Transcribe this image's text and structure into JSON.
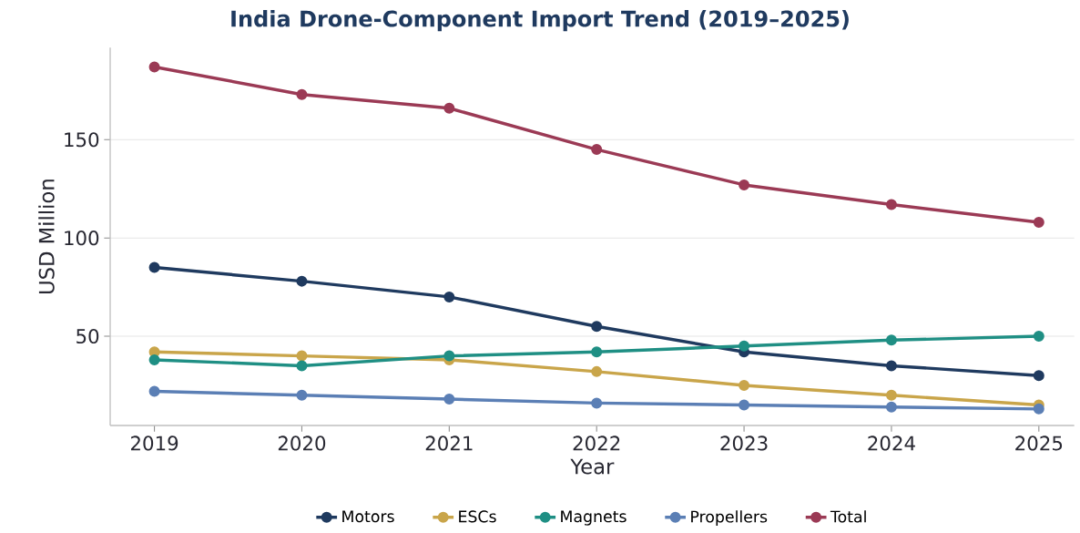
{
  "chart_data": {
    "type": "line",
    "title": "India Drone-Component Import Trend (2019–2025)",
    "xlabel": "Year",
    "ylabel": "USD Million",
    "x": [
      2019,
      2020,
      2021,
      2022,
      2023,
      2024,
      2025
    ],
    "series": [
      {
        "name": "Motors",
        "color": "#1f3a5f",
        "values": [
          85,
          78,
          70,
          55,
          42,
          35,
          30
        ]
      },
      {
        "name": "ESCs",
        "color": "#c9a54a",
        "values": [
          42,
          40,
          38,
          32,
          25,
          20,
          15
        ]
      },
      {
        "name": "Magnets",
        "color": "#1f8f84",
        "values": [
          38,
          35,
          40,
          42,
          45,
          48,
          50
        ]
      },
      {
        "name": "Propellers",
        "color": "#5b7fb5",
        "values": [
          22,
          20,
          18,
          16,
          15,
          14,
          13
        ]
      },
      {
        "name": "Total",
        "color": "#9b3a55",
        "values": [
          187,
          173,
          166,
          145,
          127,
          117,
          108
        ]
      }
    ],
    "xlim": [
      2018.7,
      2025.24
    ],
    "ylim": [
      4.6,
      196.8
    ],
    "xticks": [
      2019,
      2020,
      2021,
      2022,
      2023,
      2024,
      2025
    ],
    "yticks": [
      50,
      100,
      150
    ],
    "grid": "y",
    "legend": "bottom",
    "marker": "circle",
    "line_style": "solid"
  }
}
